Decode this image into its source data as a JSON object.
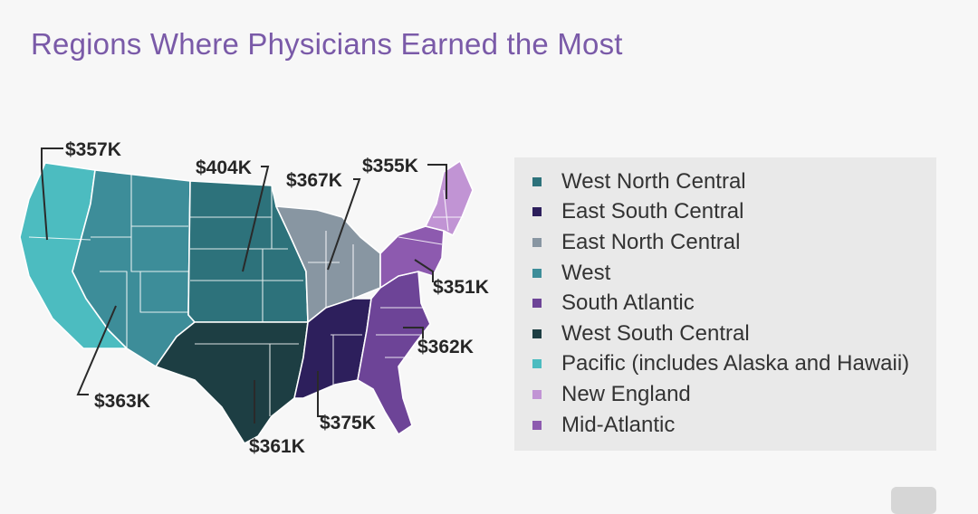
{
  "title": "Regions Where Physicians Earned the Most",
  "colors": {
    "title": "#7a5aa8",
    "West North Central": "#2d727b",
    "East South Central": "#2d1f5c",
    "East North Central": "#8896a2",
    "West": "#3d8d99",
    "South Atlantic": "#6d4497",
    "West South Central": "#1d3e43",
    "Pacific": "#4cbcc0",
    "New England": "#c194d4",
    "Mid-Atlantic": "#8d5aaf"
  },
  "map": {
    "labels": {
      "pacific": "$357K",
      "west_north_central": "$404K",
      "east_north_central": "$367K",
      "new_england": "$355K",
      "mid_atlantic": "$351K",
      "south_atlantic": "$362K",
      "west": "$363K",
      "east_south_central": "$375K",
      "west_south_central": "$361K"
    }
  },
  "legend": [
    {
      "label": "West North Central",
      "color": "#2d727b"
    },
    {
      "label": "East South Central",
      "color": "#2d1f5c"
    },
    {
      "label": "East North Central",
      "color": "#8896a2"
    },
    {
      "label": "West",
      "color": "#3d8d99"
    },
    {
      "label": "South Atlantic",
      "color": "#6d4497"
    },
    {
      "label": "West South Central",
      "color": "#1d3e43"
    },
    {
      "label": "Pacific (includes Alaska and Hawaii)",
      "color": "#4cbcc0"
    },
    {
      "label": "New England",
      "color": "#c194d4"
    },
    {
      "label": "Mid-Atlantic",
      "color": "#8d5aaf"
    }
  ]
}
